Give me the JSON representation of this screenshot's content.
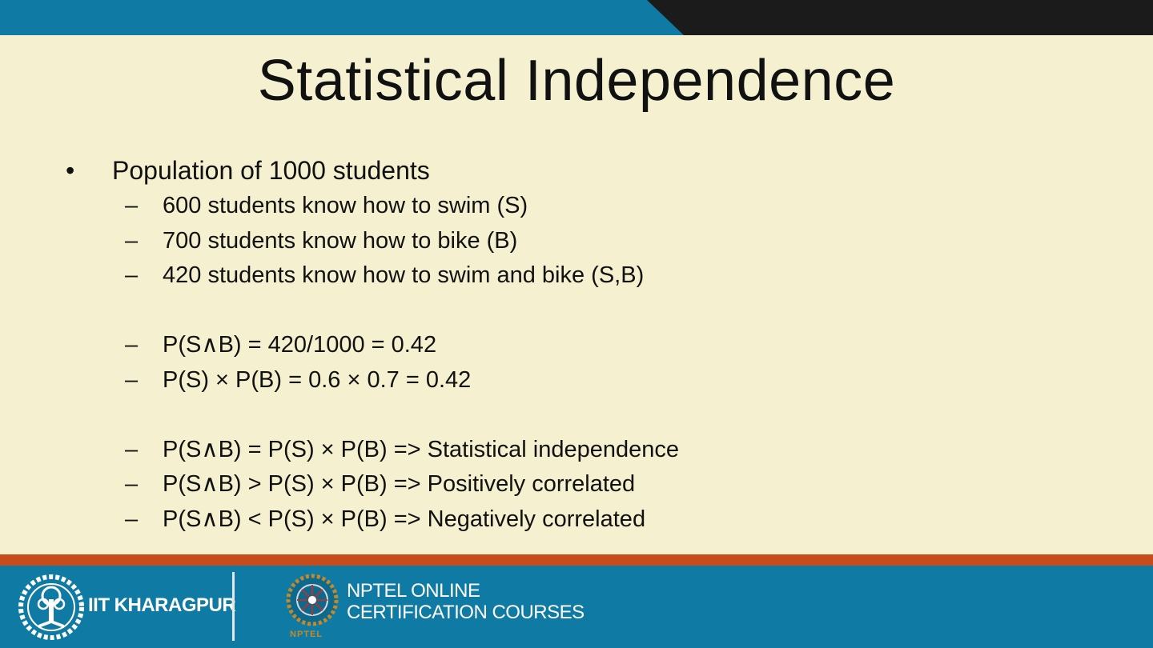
{
  "title": "Statistical Independence",
  "bullet": {
    "symbol": "•",
    "text": "Population of 1000 students"
  },
  "dash": "–",
  "group1": [
    "600 students know how to swim (S)",
    "700 students know how to bike (B)",
    "420 students know how to swim and bike (S,B)"
  ],
  "group2": [
    "P(S∧B) = 420/1000 = 0.42",
    "P(S) × P(B) = 0.6 × 0.7 = 0.42"
  ],
  "group3": [
    "P(S∧B) = P(S) × P(B) => Statistical independence",
    "P(S∧B) > P(S) × P(B) => Positively correlated",
    "P(S∧B) < P(S) × P(B) => Negatively correlated"
  ],
  "footer": {
    "left_label": "IIT KHARAGPUR",
    "right_line1": "NPTEL ONLINE",
    "right_line2": "CERTIFICATION COURSES",
    "nptel_logo_word": "NPTEL",
    "iit_logo_icon": "iit-kharagpur-emblem-icon",
    "nptel_logo_icon": "nptel-emblem-icon"
  },
  "colors": {
    "background": "#f5f1d0",
    "top_band": "#0f7aa3",
    "top_right_dark": "#1b1b1b",
    "footer": "#0f7aa3",
    "footer_stripe": "#c84b1b"
  }
}
